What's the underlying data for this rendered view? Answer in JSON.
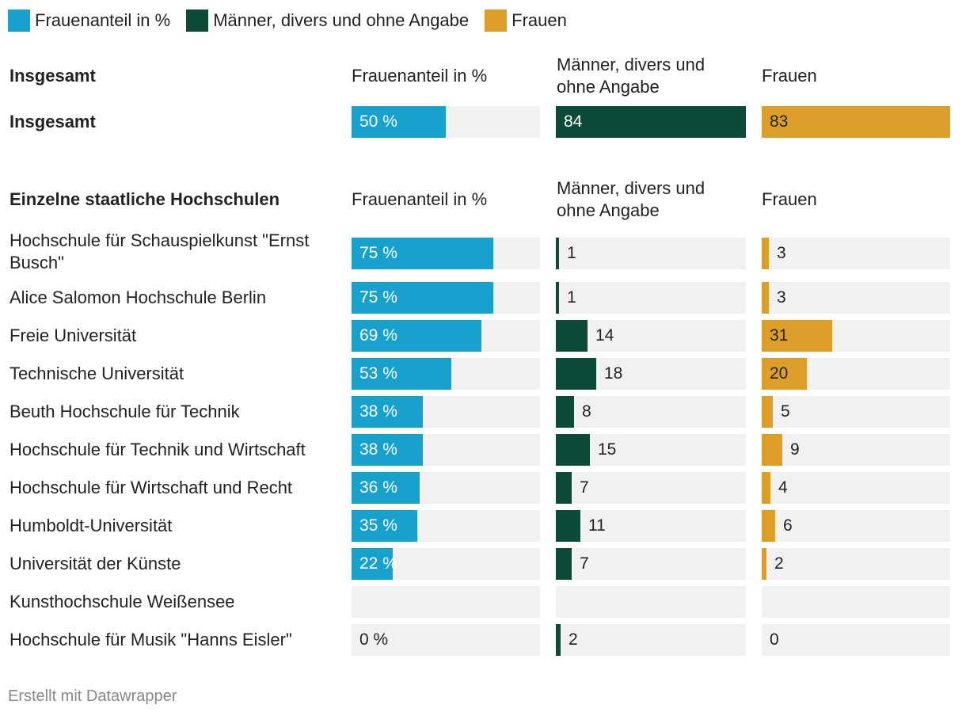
{
  "legend": [
    {
      "label": "Frauenanteil in %",
      "color": "#18a1cd"
    },
    {
      "label": "Männer, divers und ohne Angabe",
      "color": "#0d4b38"
    },
    {
      "label": "Frauen",
      "color": "#de9f2a"
    }
  ],
  "sections": [
    {
      "title": "Insgesamt",
      "col_headers": [
        "Frauenanteil in %",
        "Männer, divers und ohne Angabe",
        "Frauen"
      ]
    },
    {
      "title": "Einzelne staatliche Hochschulen",
      "col_headers": [
        "Frauenanteil in %",
        "Männer, divers und ohne Angabe",
        "Frauen"
      ]
    }
  ],
  "footer": "Erstellt mit Datawrapper",
  "chart_data": {
    "type": "table",
    "columns": [
      "Frauenanteil in %",
      "Männer, divers und ohne Angabe",
      "Frauen"
    ],
    "scales": {
      "share_max": 100,
      "men_max": 84,
      "women_max": 83
    },
    "rows": [
      {
        "section": 0,
        "name": "Insgesamt",
        "share": 50,
        "share_label": "50 %",
        "men": 84,
        "men_label": "84",
        "women": 83,
        "women_label": "83"
      },
      {
        "section": 1,
        "name": "Hochschule für Schauspielkunst \"Ernst Busch\"",
        "share": 75,
        "share_label": "75 %",
        "men": 1,
        "men_label": "1",
        "women": 3,
        "women_label": "3"
      },
      {
        "section": 1,
        "name": "Alice Salomon Hochschule Berlin",
        "share": 75,
        "share_label": "75 %",
        "men": 1,
        "men_label": "1",
        "women": 3,
        "women_label": "3"
      },
      {
        "section": 1,
        "name": "Freie Universität",
        "share": 69,
        "share_label": "69 %",
        "men": 14,
        "men_label": "14",
        "women": 31,
        "women_label": "31"
      },
      {
        "section": 1,
        "name": "Technische Universität",
        "share": 53,
        "share_label": "53 %",
        "men": 18,
        "men_label": "18",
        "women": 20,
        "women_label": "20"
      },
      {
        "section": 1,
        "name": "Beuth Hochschule für Technik",
        "share": 38,
        "share_label": "38 %",
        "men": 8,
        "men_label": "8",
        "women": 5,
        "women_label": "5"
      },
      {
        "section": 1,
        "name": "Hochschule für Technik und Wirtschaft",
        "share": 38,
        "share_label": "38 %",
        "men": 15,
        "men_label": "15",
        "women": 9,
        "women_label": "9"
      },
      {
        "section": 1,
        "name": "Hochschule für Wirtschaft und Recht",
        "share": 36,
        "share_label": "36 %",
        "men": 7,
        "men_label": "7",
        "women": 4,
        "women_label": "4"
      },
      {
        "section": 1,
        "name": "Humboldt-Universität",
        "share": 35,
        "share_label": "35 %",
        "men": 11,
        "men_label": "11",
        "women": 6,
        "women_label": "6"
      },
      {
        "section": 1,
        "name": "Universität der Künste",
        "share": 22,
        "share_label": "22 %",
        "men": 7,
        "men_label": "7",
        "women": 2,
        "women_label": "2"
      },
      {
        "section": 1,
        "name": "Kunsthochschule Weißensee",
        "share": null,
        "share_label": "",
        "men": null,
        "men_label": "",
        "women": null,
        "women_label": ""
      },
      {
        "section": 1,
        "name": "Hochschule für Musik \"Hanns Eisler\"",
        "share": 0,
        "share_label": "0 %",
        "men": 2,
        "men_label": "2",
        "women": 0,
        "women_label": "0"
      }
    ]
  }
}
